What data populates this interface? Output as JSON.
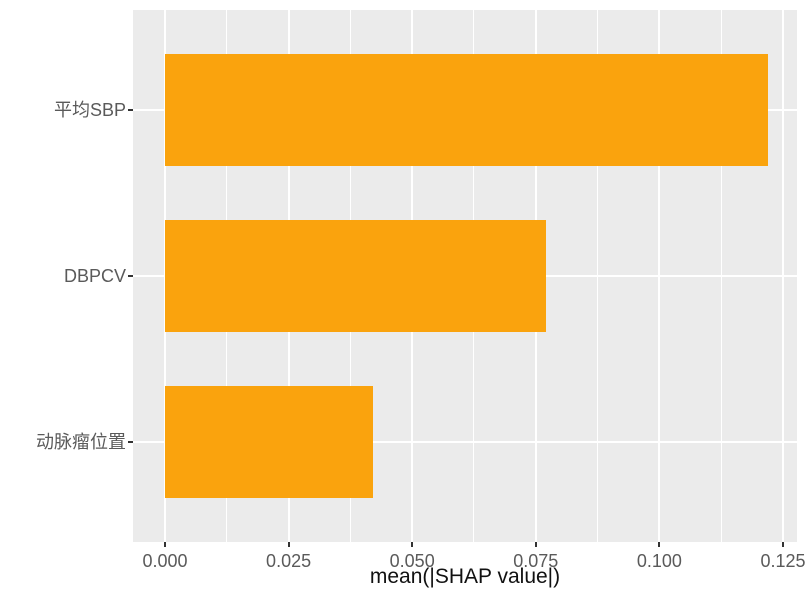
{
  "chart_data": {
    "type": "bar",
    "orientation": "horizontal",
    "title": "",
    "xlabel": "mean(|SHAP value|)",
    "ylabel": "",
    "categories": [
      "平均SBP",
      "DBPCV",
      "动脉瘤位置"
    ],
    "values": [
      0.122,
      0.077,
      0.042
    ],
    "x_ticks": [
      0,
      0.025,
      0.05,
      0.075,
      0.1,
      0.125
    ],
    "x_tick_labels": [
      "0.000",
      "0.025",
      "0.050",
      "0.075",
      "0.100",
      "0.125"
    ],
    "xlim": [
      -0.00647,
      0.12783
    ],
    "grid": "on",
    "legend": "none",
    "colors": {
      "bar": "#FAA30D",
      "panel_bg": "#EBEBEB",
      "grid": "#FFFFFF",
      "tick_mark": "#333333",
      "axis_text": "#5A5A5A",
      "axis_title": "#111111",
      "background": "#FFFFFF"
    }
  }
}
